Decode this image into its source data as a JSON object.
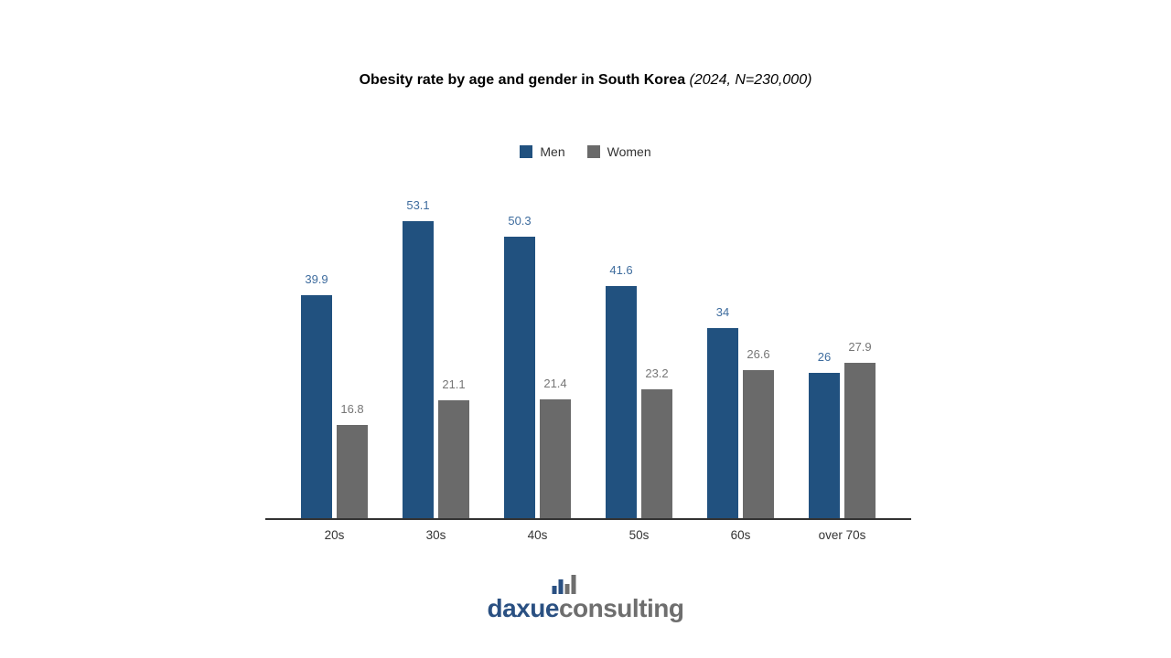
{
  "title": {
    "main": "Obesity rate by age and gender in South Korea",
    "suffix": "(2024, N=230,000)"
  },
  "legend": {
    "items": [
      {
        "label": "Men"
      },
      {
        "label": "Women"
      }
    ]
  },
  "palette": {
    "men_bar": "#21517F",
    "women_bar": "#6A6A6A",
    "men_label": "#3E6C9E",
    "women_label": "#767676",
    "axis": "#333333",
    "logo_blue": "#2A5082",
    "logo_gray": "#6E6E6E"
  },
  "chart_data": {
    "type": "bar",
    "categories": [
      "20s",
      "30s",
      "40s",
      "50s",
      "60s",
      "over 70s"
    ],
    "series": [
      {
        "name": "Men",
        "color": "#21517F",
        "values": [
          39.9,
          53.1,
          50.3,
          41.6,
          34,
          26
        ]
      },
      {
        "name": "Women",
        "color": "#6A6A6A",
        "values": [
          16.8,
          21.1,
          21.4,
          23.2,
          26.6,
          27.9
        ]
      }
    ],
    "title": "Obesity rate by age and gender in South Korea (2024, N=230,000)",
    "xlabel": "",
    "ylabel": "",
    "ylim": [
      0,
      60
    ],
    "grid": false,
    "data_labels": true,
    "legend_position": "top"
  },
  "logo": {
    "word1": "daxue",
    "word2": "consulting",
    "icon": "bar-chart-icon"
  }
}
